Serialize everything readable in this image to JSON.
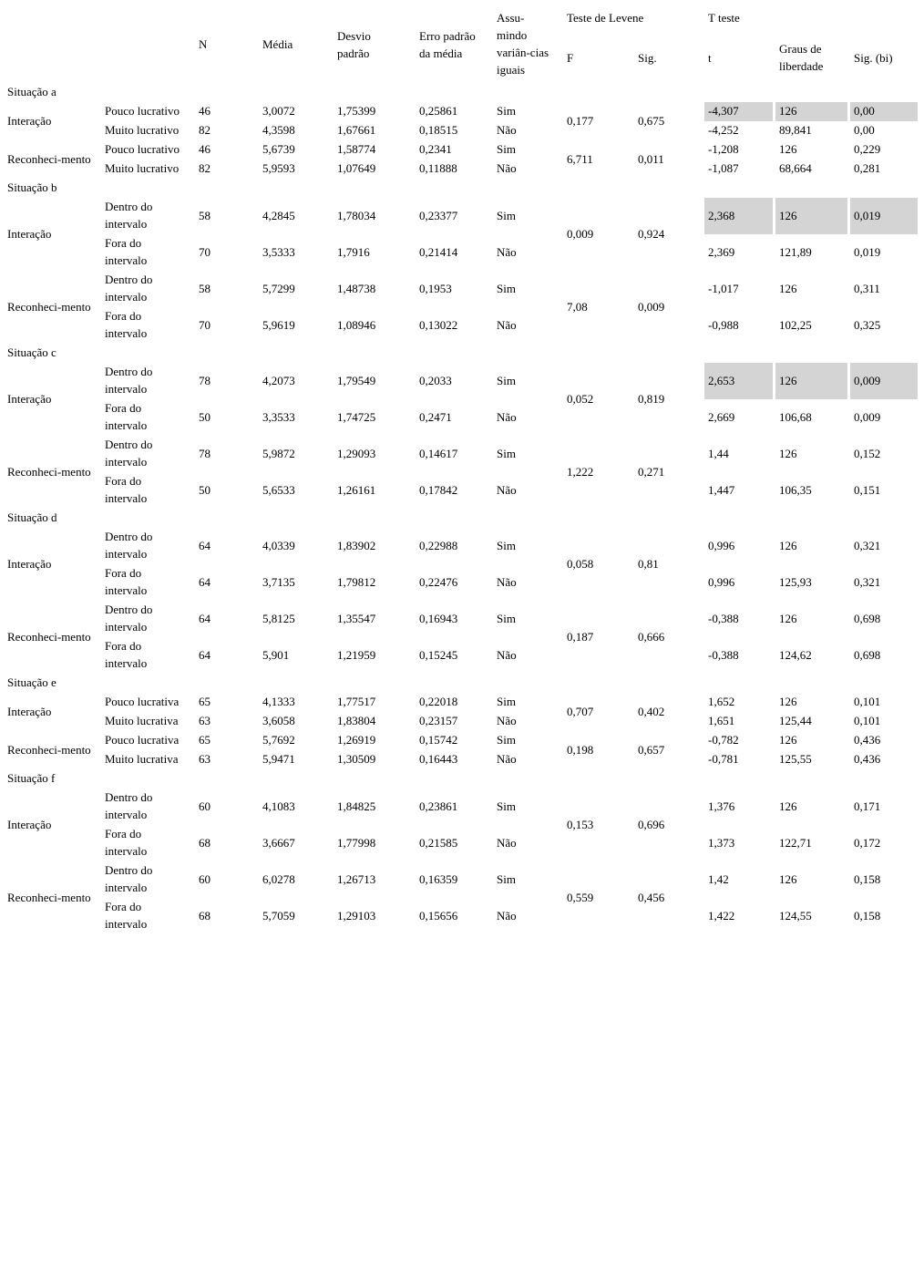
{
  "page": {
    "background_color": "#ffffff",
    "text_color": "#000000",
    "highlight_color": "#d4d4d4"
  },
  "header": {
    "n": "N",
    "media": "Média",
    "desvio": "Desvio\npadrão",
    "erro": "Erro padrão\nda média",
    "assumindo": "Assu-\nmindo\nvariân-cias\niguais",
    "teste_levene": "Teste de Levene",
    "f": "F",
    "sig": "Sig.",
    "t_teste": "T teste",
    "t": "t",
    "graus": "Graus de\nliberdade",
    "sig_bi": "Sig. (bi)"
  },
  "sections": [
    {
      "label": "Situação a",
      "tall_rows": false,
      "groups": [
        {
          "label": "Interação",
          "f": "0,177",
          "sig": "0,675",
          "rows": [
            {
              "sub": "Pouco lucrativo",
              "n": "46",
              "media": "3,0072",
              "desvio": "1,75399",
              "erro": "0,25861",
              "assumindo": "Sim",
              "t": "-4,307",
              "graus": "126",
              "sig_bi": "0,00",
              "highlight": true
            },
            {
              "sub": "Muito lucrativo",
              "n": "82",
              "media": "4,3598",
              "desvio": "1,67661",
              "erro": "0,18515",
              "assumindo": "Não",
              "t": "-4,252",
              "graus": "89,841",
              "sig_bi": "0,00",
              "highlight": false
            }
          ]
        },
        {
          "label": "Reconheci-mento",
          "f": "6,711",
          "sig": "0,011",
          "rows": [
            {
              "sub": "Pouco lucrativo",
              "n": "46",
              "media": "5,6739",
              "desvio": "1,58774",
              "erro": "0,2341",
              "assumindo": "Sim",
              "t": "-1,208",
              "graus": "126",
              "sig_bi": "0,229",
              "highlight": false
            },
            {
              "sub": "Muito lucrativo",
              "n": "82",
              "media": "5,9593",
              "desvio": "1,07649",
              "erro": "0,11888",
              "assumindo": "Não",
              "t": "-1,087",
              "graus": "68,664",
              "sig_bi": "0,281",
              "highlight": false
            }
          ]
        }
      ]
    },
    {
      "label": "Situação b",
      "tall_rows": true,
      "groups": [
        {
          "label": "Interação",
          "f": "0,009",
          "sig": "0,924",
          "rows": [
            {
              "sub": "Dentro do\nintervalo",
              "n": "58",
              "media": "4,2845",
              "desvio": "1,78034",
              "erro": "0,23377",
              "assumindo": "Sim",
              "t": "2,368",
              "graus": "126",
              "sig_bi": "0,019",
              "highlight": true
            },
            {
              "sub": "Fora do\nintervalo",
              "n": "70",
              "media": "3,5333",
              "desvio": "1,7916",
              "erro": "0,21414",
              "assumindo": "Não",
              "t": "2,369",
              "graus": "121,89",
              "sig_bi": "0,019",
              "highlight": false
            }
          ]
        },
        {
          "label": "Reconheci-mento",
          "f": "7,08",
          "sig": "0,009",
          "rows": [
            {
              "sub": "Dentro do\nintervalo",
              "n": "58",
              "media": "5,7299",
              "desvio": "1,48738",
              "erro": "0,1953",
              "assumindo": "Sim",
              "t": "-1,017",
              "graus": "126",
              "sig_bi": "0,311",
              "highlight": false
            },
            {
              "sub": "Fora do\nintervalo",
              "n": "70",
              "media": "5,9619",
              "desvio": "1,08946",
              "erro": "0,13022",
              "assumindo": "Não",
              "t": "-0,988",
              "graus": "102,25",
              "sig_bi": "0,325",
              "highlight": false
            }
          ]
        }
      ]
    },
    {
      "label": "Situação c",
      "tall_rows": true,
      "groups": [
        {
          "label": "Interação",
          "f": "0,052",
          "sig": "0,819",
          "rows": [
            {
              "sub": "Dentro do\nintervalo",
              "n": "78",
              "media": "4,2073",
              "desvio": "1,79549",
              "erro": "0,2033",
              "assumindo": "Sim",
              "t": "2,653",
              "graus": "126",
              "sig_bi": "0,009",
              "highlight": true
            },
            {
              "sub": "Fora do\nintervalo",
              "n": "50",
              "media": "3,3533",
              "desvio": "1,74725",
              "erro": "0,2471",
              "assumindo": "Não",
              "t": "2,669",
              "graus": "106,68",
              "sig_bi": "0,009",
              "highlight": false
            }
          ]
        },
        {
          "label": "Reconheci-mento",
          "f": "1,222",
          "sig": "0,271",
          "rows": [
            {
              "sub": "Dentro do\nintervalo",
              "n": "78",
              "media": "5,9872",
              "desvio": "1,29093",
              "erro": "0,14617",
              "assumindo": "Sim",
              "t": "1,44",
              "graus": "126",
              "sig_bi": "0,152",
              "highlight": false
            },
            {
              "sub": "Fora do\nintervalo",
              "n": "50",
              "media": "5,6533",
              "desvio": "1,26161",
              "erro": "0,17842",
              "assumindo": "Não",
              "t": "1,447",
              "graus": "106,35",
              "sig_bi": "0,151",
              "highlight": false
            }
          ]
        }
      ]
    },
    {
      "label": "Situação d",
      "tall_rows": true,
      "groups": [
        {
          "label": "Interação",
          "f": "0,058",
          "sig": "0,81",
          "rows": [
            {
              "sub": "Dentro do\nintervalo",
              "n": "64",
              "media": "4,0339",
              "desvio": "1,83902",
              "erro": "0,22988",
              "assumindo": "Sim",
              "t": "0,996",
              "graus": "126",
              "sig_bi": "0,321",
              "highlight": false
            },
            {
              "sub": "Fora do\nintervalo",
              "n": "64",
              "media": "3,7135",
              "desvio": "1,79812",
              "erro": "0,22476",
              "assumindo": "Não",
              "t": "0,996",
              "graus": "125,93",
              "sig_bi": "0,321",
              "highlight": false
            }
          ]
        },
        {
          "label": "Reconheci-mento",
          "f": "0,187",
          "sig": "0,666",
          "rows": [
            {
              "sub": "Dentro do\nintervalo",
              "n": "64",
              "media": "5,8125",
              "desvio": "1,35547",
              "erro": "0,16943",
              "assumindo": "Sim",
              "t": "-0,388",
              "graus": "126",
              "sig_bi": "0,698",
              "highlight": false
            },
            {
              "sub": "Fora do\nintervalo",
              "n": "64",
              "media": "5,901",
              "desvio": "1,21959",
              "erro": "0,15245",
              "assumindo": "Não",
              "t": "-0,388",
              "graus": "124,62",
              "sig_bi": "0,698",
              "highlight": false
            }
          ]
        }
      ]
    },
    {
      "label": "Situação e",
      "tall_rows": false,
      "groups": [
        {
          "label": "Interação",
          "f": "0,707",
          "sig": "0,402",
          "rows": [
            {
              "sub": "Pouco lucrativa",
              "n": "65",
              "media": "4,1333",
              "desvio": "1,77517",
              "erro": "0,22018",
              "assumindo": "Sim",
              "t": "1,652",
              "graus": "126",
              "sig_bi": "0,101",
              "highlight": false
            },
            {
              "sub": "Muito lucrativa",
              "n": "63",
              "media": "3,6058",
              "desvio": "1,83804",
              "erro": "0,23157",
              "assumindo": "Não",
              "t": "1,651",
              "graus": "125,44",
              "sig_bi": "0,101",
              "highlight": false
            }
          ]
        },
        {
          "label": "Reconheci-mento",
          "f": "0,198",
          "sig": "0,657",
          "rows": [
            {
              "sub": "Pouco lucrativa",
              "n": "65",
              "media": "5,7692",
              "desvio": "1,26919",
              "erro": "0,15742",
              "assumindo": "Sim",
              "t": "-0,782",
              "graus": "126",
              "sig_bi": "0,436",
              "highlight": false
            },
            {
              "sub": "Muito lucrativa",
              "n": "63",
              "media": "5,9471",
              "desvio": "1,30509",
              "erro": "0,16443",
              "assumindo": "Não",
              "t": "-0,781",
              "graus": "125,55",
              "sig_bi": "0,436",
              "highlight": false
            }
          ]
        }
      ]
    },
    {
      "label": "Situação f",
      "tall_rows": true,
      "groups": [
        {
          "label": "Interação",
          "f": "0,153",
          "sig": "0,696",
          "rows": [
            {
              "sub": "Dentro do\nintervalo",
              "n": "60",
              "media": "4,1083",
              "desvio": "1,84825",
              "erro": "0,23861",
              "assumindo": "Sim",
              "t": "1,376",
              "graus": "126",
              "sig_bi": "0,171",
              "highlight": false
            },
            {
              "sub": "Fora do\nintervalo",
              "n": "68",
              "media": "3,6667",
              "desvio": "1,77998",
              "erro": "0,21585",
              "assumindo": "Não",
              "t": "1,373",
              "graus": "122,71",
              "sig_bi": "0,172",
              "highlight": false
            }
          ]
        },
        {
          "label": "Reconheci-mento",
          "f": "0,559",
          "sig": "0,456",
          "rows": [
            {
              "sub": "Dentro do\nintervalo",
              "n": "60",
              "media": "6,0278",
              "desvio": "1,26713",
              "erro": "0,16359",
              "assumindo": "Sim",
              "t": "1,42",
              "graus": "126",
              "sig_bi": "0,158",
              "highlight": false
            },
            {
              "sub": "Fora do\nintervalo",
              "n": "68",
              "media": "5,7059",
              "desvio": "1,29103",
              "erro": "0,15656",
              "assumindo": "Não",
              "t": "1,422",
              "graus": "124,55",
              "sig_bi": "0,158",
              "highlight": false
            }
          ]
        }
      ]
    }
  ]
}
